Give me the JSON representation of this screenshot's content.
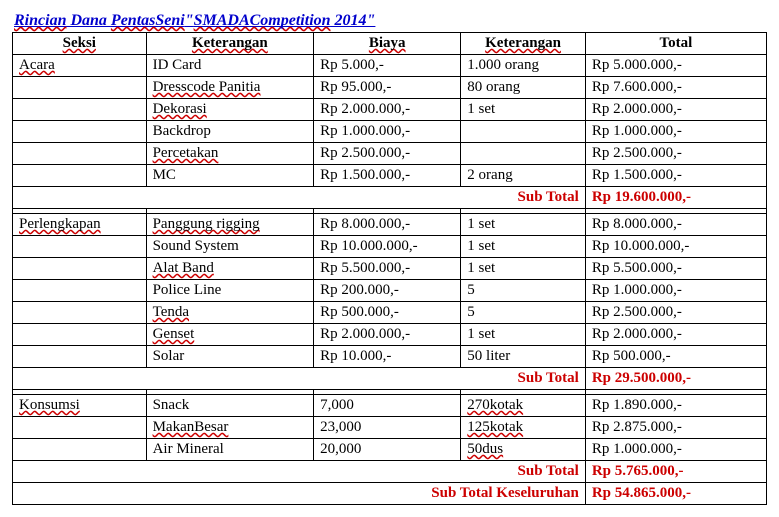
{
  "title_parts": [
    "Rincian",
    " Dana  ",
    "PentasSeni",
    "\"",
    "SMADACompetition",
    " 2014\""
  ],
  "headers": [
    "Seksi",
    "Keterangan",
    "Biaya",
    "Keterangan",
    "Total"
  ],
  "sections": [
    {
      "name": "Acara",
      "name_squiggle": true,
      "rows": [
        {
          "ket": "ID Card",
          "ket_sq": false,
          "biaya": "Rp 5.000,-",
          "qty": "1.000 orang",
          "total": "Rp 5.000.000,-"
        },
        {
          "ket": "Dresscode Panitia",
          "ket_sq": true,
          "biaya": "Rp 95.000,-",
          "qty": "80 orang",
          "total": "Rp 7.600.000,-"
        },
        {
          "ket": "Dekorasi",
          "ket_sq": true,
          "biaya": "Rp 2.000.000,-",
          "qty": "1 set",
          "total": "Rp 2.000.000,-"
        },
        {
          "ket": "Backdrop",
          "ket_sq": false,
          "biaya": "Rp 1.000.000,-",
          "qty": "",
          "total": "Rp 1.000.000,-"
        },
        {
          "ket": "Percetakan",
          "ket_sq": true,
          "biaya": "Rp 2.500.000,-",
          "qty": "",
          "total": "Rp 2.500.000,-"
        },
        {
          "ket": "MC",
          "ket_sq": false,
          "biaya": "Rp 1.500.000,-",
          "qty": "2 orang",
          "total": "Rp 1.500.000,-"
        }
      ],
      "subtotal_label": "Sub Total",
      "subtotal_value": "Rp 19.600.000,-"
    },
    {
      "name": "Perlengkapan",
      "name_squiggle": true,
      "rows": [
        {
          "ket": "Panggung rigging",
          "ket_sq": true,
          "biaya": "Rp 8.000.000,-",
          "qty": "1 set",
          "total": "Rp 8.000.000,-"
        },
        {
          "ket": "Sound System",
          "ket_sq": false,
          "biaya": "Rp 10.000.000,-",
          "qty": "1 set",
          "total": "Rp 10.000.000,-"
        },
        {
          "ket": "Alat Band",
          "ket_sq": true,
          "biaya": "Rp 5.500.000,-",
          "qty": "1 set",
          "total": "Rp 5.500.000,-"
        },
        {
          "ket": "Police Line",
          "ket_sq": false,
          "biaya": "Rp 200.000,-",
          "qty": "5",
          "total": "Rp 1.000.000,-"
        },
        {
          "ket": "Tenda",
          "ket_sq": true,
          "biaya": "Rp 500.000,-",
          "qty": "5",
          "total": "Rp 2.500.000,-"
        },
        {
          "ket": "Genset",
          "ket_sq": true,
          "biaya": "Rp 2.000.000,-",
          "qty": "1 set",
          "total": "Rp 2.000.000,-"
        },
        {
          "ket": "Solar",
          "ket_sq": false,
          "biaya": "Rp 10.000,-",
          "qty": "50 liter",
          "total": "Rp 500.000,-"
        }
      ],
      "subtotal_label": "Sub Total",
      "subtotal_value": "Rp 29.500.000,-"
    },
    {
      "name": "Konsumsi",
      "name_squiggle": true,
      "rows": [
        {
          "ket": "Snack",
          "ket_sq": false,
          "biaya": "7,000",
          "qty": "270kotak",
          "qty_sq": true,
          "total": "Rp 1.890.000,-"
        },
        {
          "ket": "MakanBesar",
          "ket_sq": true,
          "biaya": "23,000",
          "qty": "125kotak",
          "qty_sq": true,
          "total": "Rp 2.875.000,-"
        },
        {
          "ket": "Air Mineral",
          "ket_sq": false,
          "biaya": "20,000",
          "qty": "50dus",
          "qty_sq": true,
          "total": "Rp 1.000.000,-"
        }
      ],
      "subtotal_label": "Sub Total",
      "subtotal_value": "Rp 5.765.000,-"
    }
  ],
  "grand_label": "Sub Total Keseluruhan",
  "grand_value": "Rp 54.865.000,-"
}
